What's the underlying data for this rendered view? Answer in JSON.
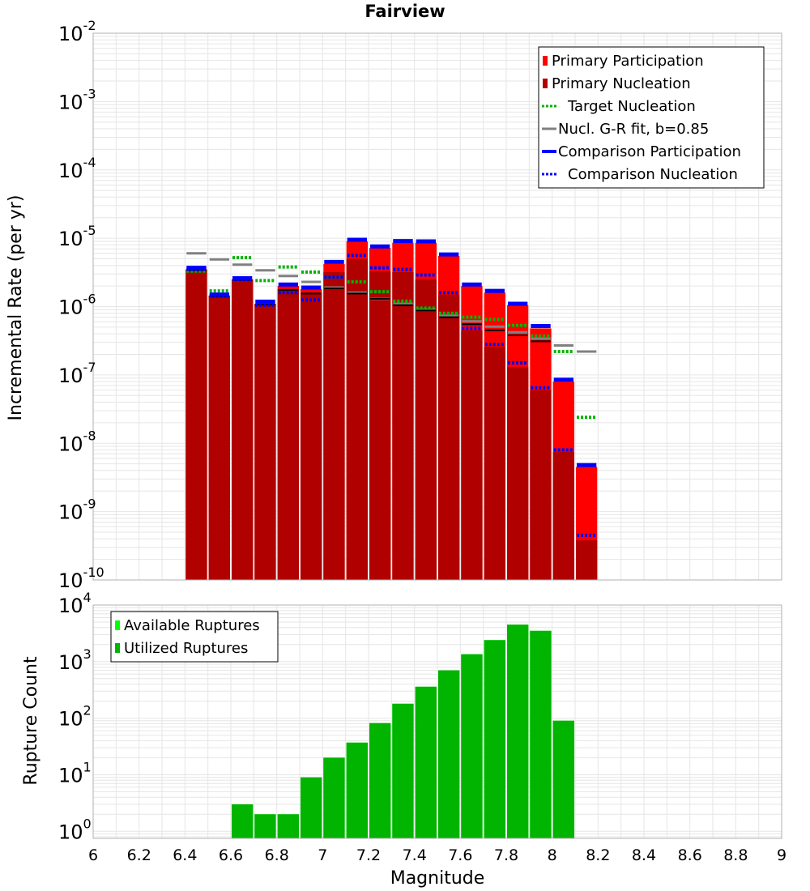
{
  "title": "Fairview",
  "colors": {
    "primary_participation": "#ff0000",
    "primary_nucleation": "#b00000",
    "target_nucleation": "#00b400",
    "gr_fit": "#808080",
    "comparison": "#0000ff",
    "available_ruptures": "#00ff00",
    "utilized_ruptures": "#00b400",
    "black_marker": "#000000",
    "grid": "#e6e6e6",
    "border": "#b0b0b0"
  },
  "x_axis": {
    "label": "Magnitude",
    "ticks": [
      "6",
      "6.2",
      "6.4",
      "6.6",
      "6.8",
      "7",
      "7.2",
      "7.4",
      "7.6",
      "7.8",
      "8",
      "8.2",
      "8.4",
      "8.6",
      "8.8",
      "9"
    ]
  },
  "chart_data": [
    {
      "type": "bar",
      "title": "Fairview",
      "xlabel": "Magnitude",
      "ylabel": "Incremental Rate (per yr)",
      "xlim": [
        6,
        9
      ],
      "ylim": [
        1e-10,
        0.01
      ],
      "yscale": "log",
      "y_ticks": [
        {
          "base": "10",
          "exp": "-10"
        },
        {
          "base": "10",
          "exp": "-9"
        },
        {
          "base": "10",
          "exp": "-8"
        },
        {
          "base": "10",
          "exp": "-7"
        },
        {
          "base": "10",
          "exp": "-6"
        },
        {
          "base": "10",
          "exp": "-5"
        },
        {
          "base": "10",
          "exp": "-4"
        },
        {
          "base": "10",
          "exp": "-3"
        },
        {
          "base": "10",
          "exp": "-2"
        }
      ],
      "grid": true,
      "legend_position": "top-right",
      "bin_width": 0.1,
      "x": [
        6.45,
        6.55,
        6.65,
        6.75,
        6.85,
        6.95,
        7.05,
        7.15,
        7.25,
        7.35,
        7.45,
        7.55,
        7.65,
        7.75,
        7.85,
        7.95,
        8.05,
        8.15
      ],
      "legend": [
        {
          "label": "Primary Participation",
          "style": "bar",
          "color": "#ff0000"
        },
        {
          "label": "Primary Nucleation",
          "style": "bar",
          "color": "#b00000"
        },
        {
          "label": "Target Nucleation",
          "style": "dotted",
          "color": "#00b400"
        },
        {
          "label": "Nucl. G-R fit, b=0.85",
          "style": "solid",
          "color": "#808080"
        },
        {
          "label": "Comparison Participation",
          "style": "thick",
          "color": "#0000ff"
        },
        {
          "label": "Comparison Nucleation",
          "style": "dotted",
          "color": "#0000ff"
        }
      ],
      "series": [
        {
          "name": "Primary Participation",
          "values": [
            3.5e-06,
            1.45e-06,
            2.5e-06,
            1.1e-06,
            2e-06,
            1.8e-06,
            4.2e-06,
            9e-06,
            7.2e-06,
            8.6e-06,
            8.6e-06,
            5.5e-06,
            2e-06,
            1.6e-06,
            1.05e-06,
            4.8e-07,
            8e-08,
            4.5e-09
          ]
        },
        {
          "name": "Primary Nucleation",
          "values": [
            3.5e-06,
            1.45e-06,
            2.5e-06,
            1.1e-06,
            1.8e-06,
            1.6e-06,
            3.2e-06,
            5e-06,
            3.3e-06,
            3.2e-06,
            2.5e-06,
            1.5e-06,
            4.5e-07,
            2.6e-07,
            1.3e-07,
            6e-08,
            7.5e-09,
            3.8e-10
          ]
        },
        {
          "name": "Target Nucleation",
          "values": [
            3.3e-06,
            1.7e-06,
            5.2e-06,
            2.4e-06,
            3.8e-06,
            3.2e-06,
            2.7e-06,
            2.3e-06,
            1.65e-06,
            1.2e-06,
            9.5e-07,
            8e-07,
            7e-07,
            6.5e-07,
            5.3e-07,
            3.7e-07,
            2.2e-07,
            2.4e-08
          ]
        },
        {
          "name": "Nucl. G-R fit, b=0.85",
          "values": [
            6e-06,
            4.9e-06,
            4.1e-06,
            3.4e-06,
            2.8e-06,
            2.3e-06,
            1.9e-06,
            1.6e-06,
            1.3e-06,
            1.1e-06,
            9e-07,
            7.4e-07,
            6.1e-07,
            5.1e-07,
            4.2e-07,
            3.4e-07,
            2.7e-07,
            2.2e-07
          ]
        },
        {
          "name": "Comparison Participation",
          "values": [
            3.7e-06,
            1.5e-06,
            2.6e-06,
            1.18e-06,
            2.1e-06,
            1.9e-06,
            4.5e-06,
            9.5e-06,
            7.6e-06,
            9.1e-06,
            9e-06,
            5.8e-06,
            2.1e-06,
            1.7e-06,
            1.1e-06,
            5.2e-07,
            8.5e-08,
            4.8e-09
          ]
        },
        {
          "name": "Comparison Nucleation",
          "values": [
            3.5e-06,
            1.45e-06,
            2.5e-06,
            1.05e-06,
            1.6e-06,
            1.25e-06,
            2.7e-06,
            5.6e-06,
            3.7e-06,
            3.5e-06,
            2.9e-06,
            1.6e-06,
            4.8e-07,
            2.8e-07,
            1.5e-07,
            6.5e-08,
            8e-09,
            4.5e-10
          ]
        },
        {
          "name": "",
          "color": "#000000",
          "values": [
            3.4e-06,
            1.4e-06,
            2.45e-06,
            1.08e-06,
            1.75e-06,
            1.55e-06,
            1.85e-06,
            1.55e-06,
            1.3e-06,
            1.05e-06,
            8.8e-07,
            7e-07,
            5.5e-07,
            4.5e-07,
            3.8e-07,
            3.1e-07,
            null,
            null
          ]
        }
      ]
    },
    {
      "type": "bar",
      "xlabel": "Magnitude",
      "ylabel": "Rupture Count",
      "xlim": [
        6,
        9
      ],
      "ylim": [
        0.75,
        10000
      ],
      "yscale": "log",
      "y_ticks": [
        {
          "base": "10",
          "exp": "0"
        },
        {
          "base": "10",
          "exp": "1"
        },
        {
          "base": "10",
          "exp": "2"
        },
        {
          "base": "10",
          "exp": "3"
        },
        {
          "base": "10",
          "exp": "4"
        }
      ],
      "grid": true,
      "legend_position": "top-left",
      "bin_width": 0.1,
      "x": [
        6.65,
        6.75,
        6.85,
        6.95,
        7.05,
        7.15,
        7.25,
        7.35,
        7.45,
        7.55,
        7.65,
        7.75,
        7.85,
        7.95,
        8.05
      ],
      "legend": [
        {
          "label": "Available Ruptures",
          "style": "bar",
          "color": "#00ff00"
        },
        {
          "label": "Utilized Ruptures",
          "style": "bar",
          "color": "#00b400"
        }
      ],
      "series": [
        {
          "name": "Available Ruptures",
          "values": [
            3,
            2,
            2,
            9,
            20,
            37,
            82,
            180,
            360,
            700,
            1350,
            2400,
            4500,
            3500,
            90
          ]
        },
        {
          "name": "Utilized Ruptures",
          "values": [
            3,
            2,
            2,
            9,
            20,
            37,
            82,
            180,
            360,
            700,
            1350,
            2400,
            4500,
            3500,
            90
          ]
        }
      ]
    }
  ]
}
